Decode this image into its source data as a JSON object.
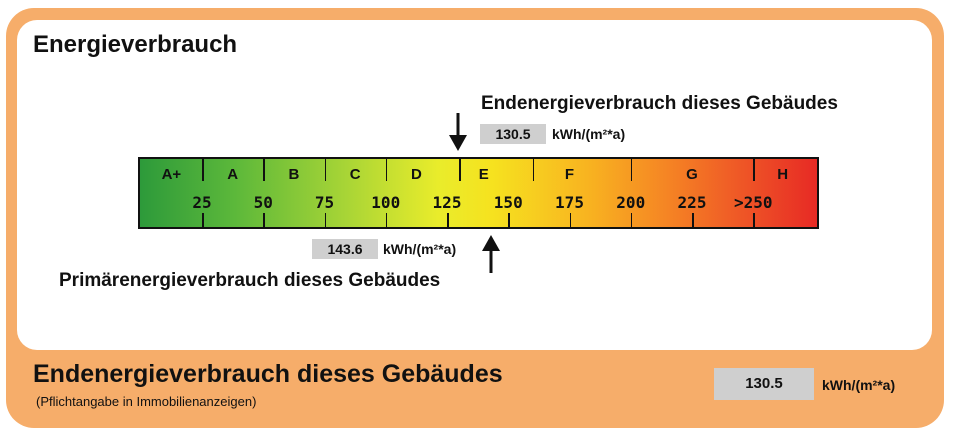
{
  "title": "Energieverbrauch",
  "endenergie": {
    "label": "Endenergieverbrauch dieses Gebäudes",
    "value": "130.5",
    "value_num": 130.5,
    "unit": "kWh/(m²*a)"
  },
  "primaerenergie": {
    "label": "Primärenergieverbrauch dieses Gebäudes",
    "value": "143.6",
    "value_num": 143.6,
    "unit": "kWh/(m²*a)"
  },
  "scale": {
    "classes": [
      {
        "label": "A+",
        "value": 12.5
      },
      {
        "label": "A",
        "value": 37.5
      },
      {
        "label": "B",
        "value": 62.5
      },
      {
        "label": "C",
        "value": 87.5
      },
      {
        "label": "D",
        "value": 112.5
      },
      {
        "label": "E",
        "value": 140
      },
      {
        "label": "F",
        "value": 175
      },
      {
        "label": "G",
        "value": 225
      },
      {
        "label": "H",
        "value": 262
      }
    ],
    "numbers": [
      {
        "label": "25",
        "value": 25
      },
      {
        "label": "50",
        "value": 50
      },
      {
        "label": "75",
        "value": 75
      },
      {
        "label": "100",
        "value": 100
      },
      {
        "label": "125",
        "value": 125
      },
      {
        "label": "150",
        "value": 150
      },
      {
        "label": "175",
        "value": 175
      },
      {
        "label": "200",
        "value": 200
      },
      {
        "label": "225",
        "value": 225
      },
      {
        "label": ">250",
        "value": 250
      }
    ],
    "class_boundaries": [
      25,
      50,
      75,
      100,
      130,
      160,
      200,
      250
    ],
    "colors": [
      "#2d9a3a",
      "#a6d436",
      "#f6e21f",
      "#f58424",
      "#e72a25"
    ]
  },
  "footer": {
    "title": "Endenergieverbrauch dieses Gebäudes",
    "subtitle": "(Pflichtangabe in Immobilienanzeigen)",
    "value": "130.5",
    "unit": "kWh/(m²*a)"
  }
}
